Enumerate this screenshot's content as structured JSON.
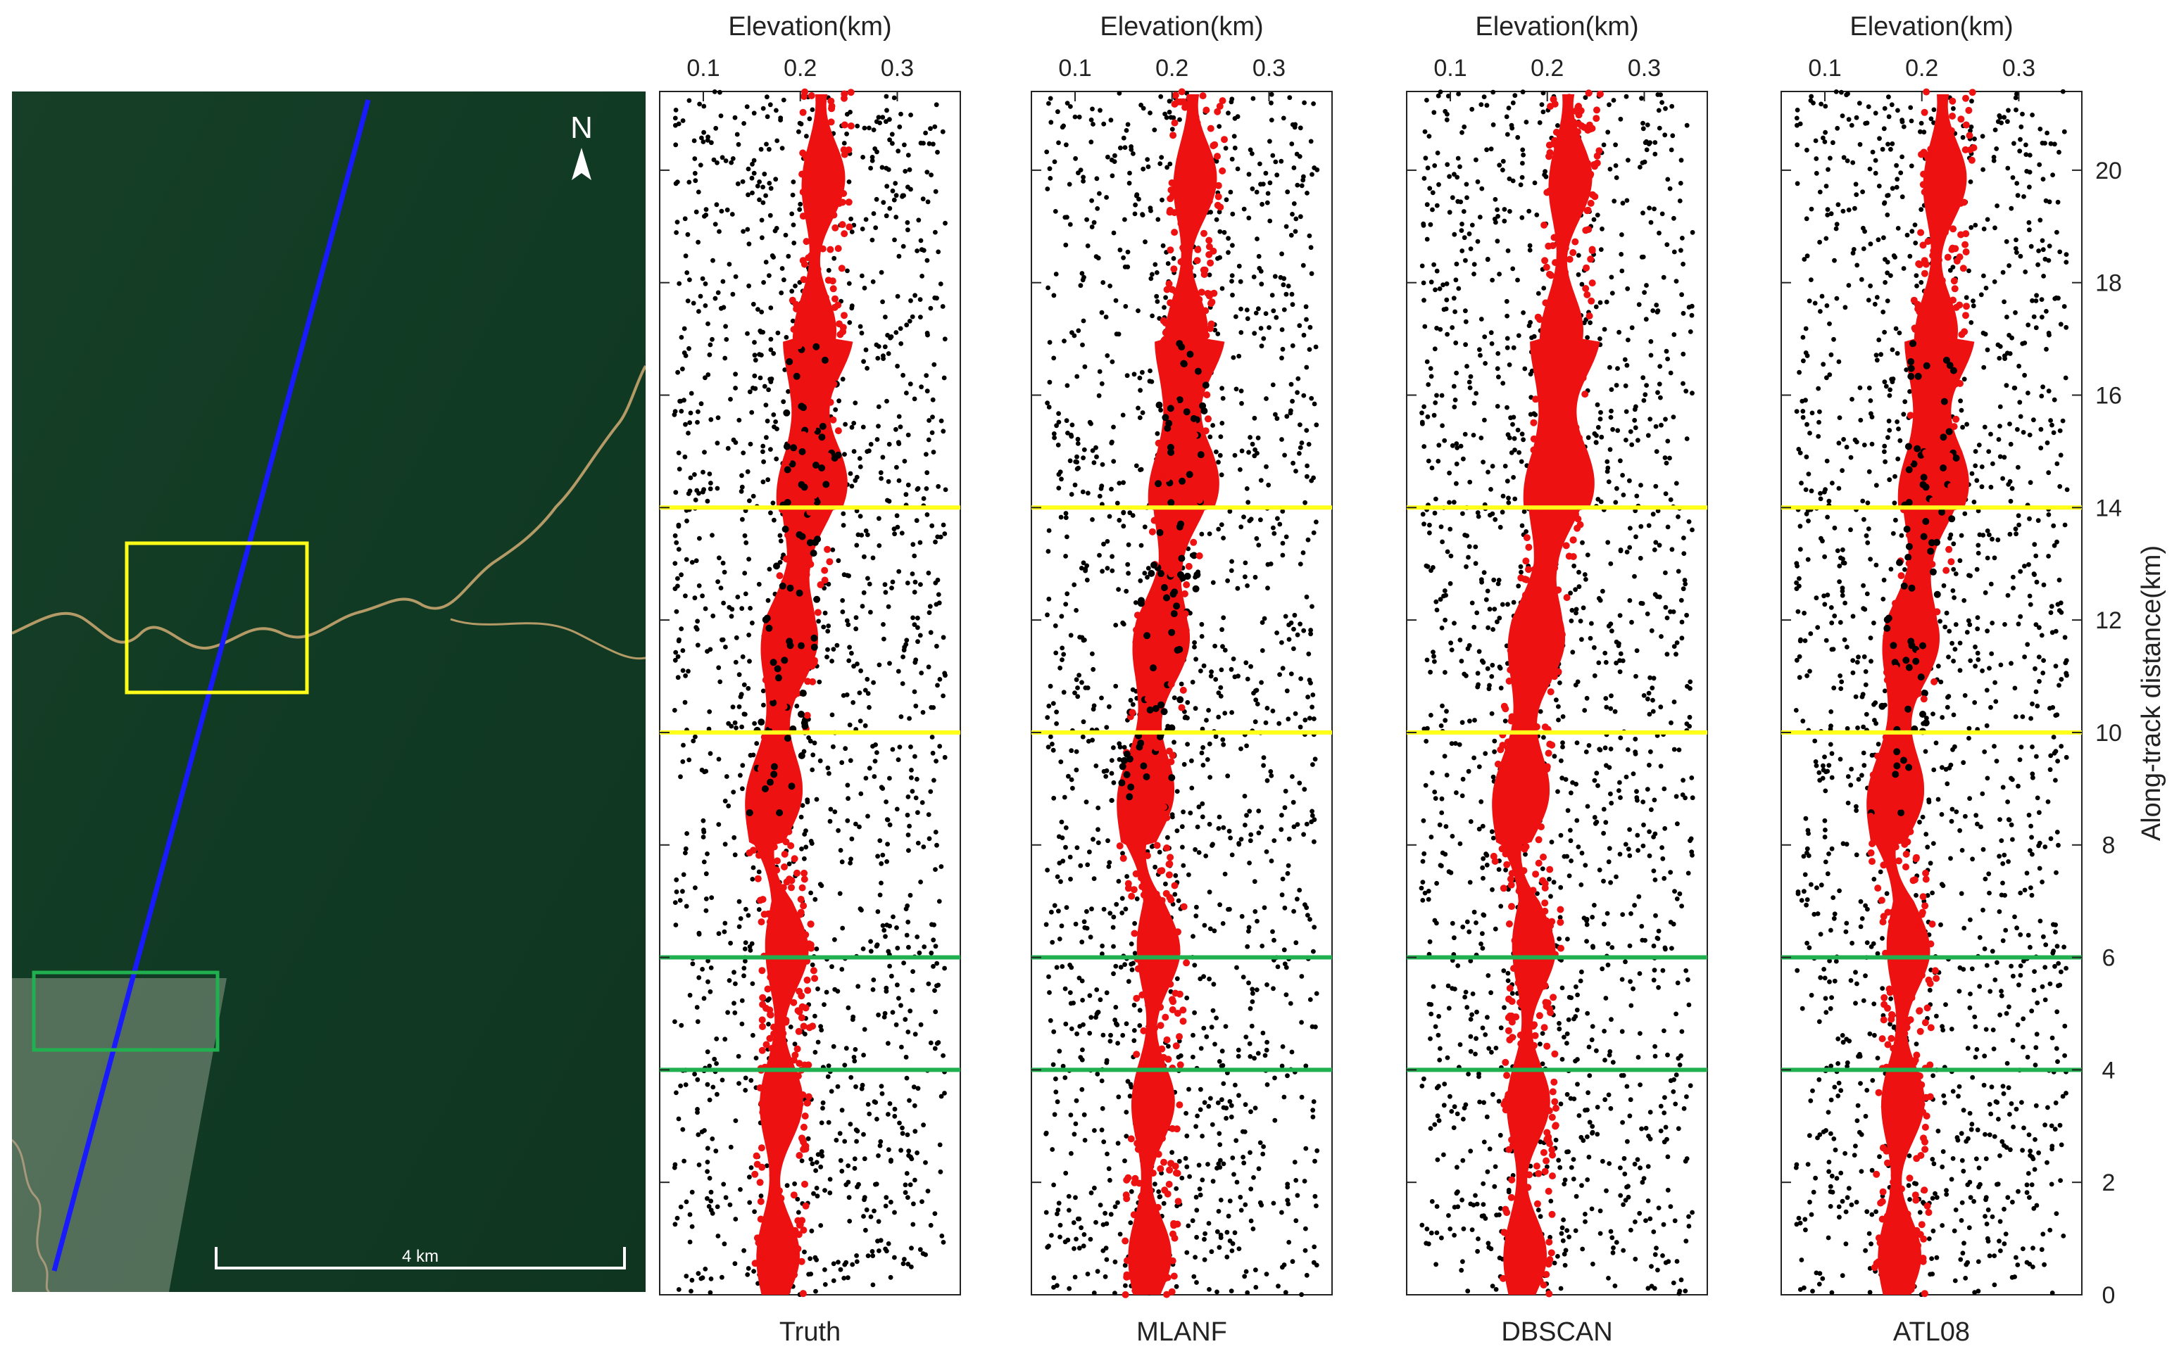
{
  "map": {
    "north_label": "N",
    "scale_label": "4 km",
    "colors": {
      "forest": "#113a24",
      "river": "#b39a66",
      "track": "#1a1aff",
      "box_upper": "#ffff1a",
      "box_lower": "#20b050",
      "haze": "#8a9a86"
    }
  },
  "chart_data": {
    "type": "scatter",
    "x_axis_title": "Elevation(km)",
    "x_ticks": [
      "0.1",
      "0.2",
      "0.3"
    ],
    "x_tick_values": [
      0.1,
      0.2,
      0.3
    ],
    "xlim": [
      0.055,
      0.365
    ],
    "y_axis_title": "Along-track distance(km)",
    "y_ticks": [
      "0",
      "2",
      "4",
      "6",
      "8",
      "10",
      "12",
      "14",
      "16",
      "18",
      "20"
    ],
    "y_tick_values": [
      0,
      2,
      4,
      6,
      8,
      10,
      12,
      14,
      16,
      18,
      20
    ],
    "ylim": [
      0,
      21.4
    ],
    "reference_lines": [
      {
        "y": 14,
        "color": "#ffff1a"
      },
      {
        "y": 10,
        "color": "#ffff1a"
      },
      {
        "y": 6,
        "color": "#20b050"
      },
      {
        "y": 4,
        "color": "#20b050"
      }
    ],
    "ground_profile_elev_km": [
      {
        "y": 0,
        "x": 0.17
      },
      {
        "y": 2,
        "x": 0.172
      },
      {
        "y": 4,
        "x": 0.175
      },
      {
        "y": 5,
        "x": 0.178
      },
      {
        "y": 6,
        "x": 0.18
      },
      {
        "y": 7,
        "x": 0.178
      },
      {
        "y": 8,
        "x": 0.16
      },
      {
        "y": 9,
        "x": 0.165
      },
      {
        "y": 10,
        "x": 0.172
      },
      {
        "y": 11,
        "x": 0.178
      },
      {
        "y": 12,
        "x": 0.182
      },
      {
        "y": 13,
        "x": 0.195
      },
      {
        "y": 14,
        "x": 0.2
      },
      {
        "y": 15,
        "x": 0.205
      },
      {
        "y": 16,
        "x": 0.205
      },
      {
        "y": 17,
        "x": 0.208
      },
      {
        "y": 18,
        "x": 0.212
      },
      {
        "y": 19,
        "x": 0.215
      },
      {
        "y": 20,
        "x": 0.218
      },
      {
        "y": 21.4,
        "x": 0.22
      }
    ],
    "noise_elev_range_km": [
      0.07,
      0.35
    ],
    "series_colors": {
      "signal": "#ee1111",
      "noise": "#000000"
    },
    "panels": [
      {
        "name": "Truth"
      },
      {
        "name": "MLANF"
      },
      {
        "name": "DBSCAN"
      },
      {
        "name": "ATL08"
      }
    ]
  }
}
